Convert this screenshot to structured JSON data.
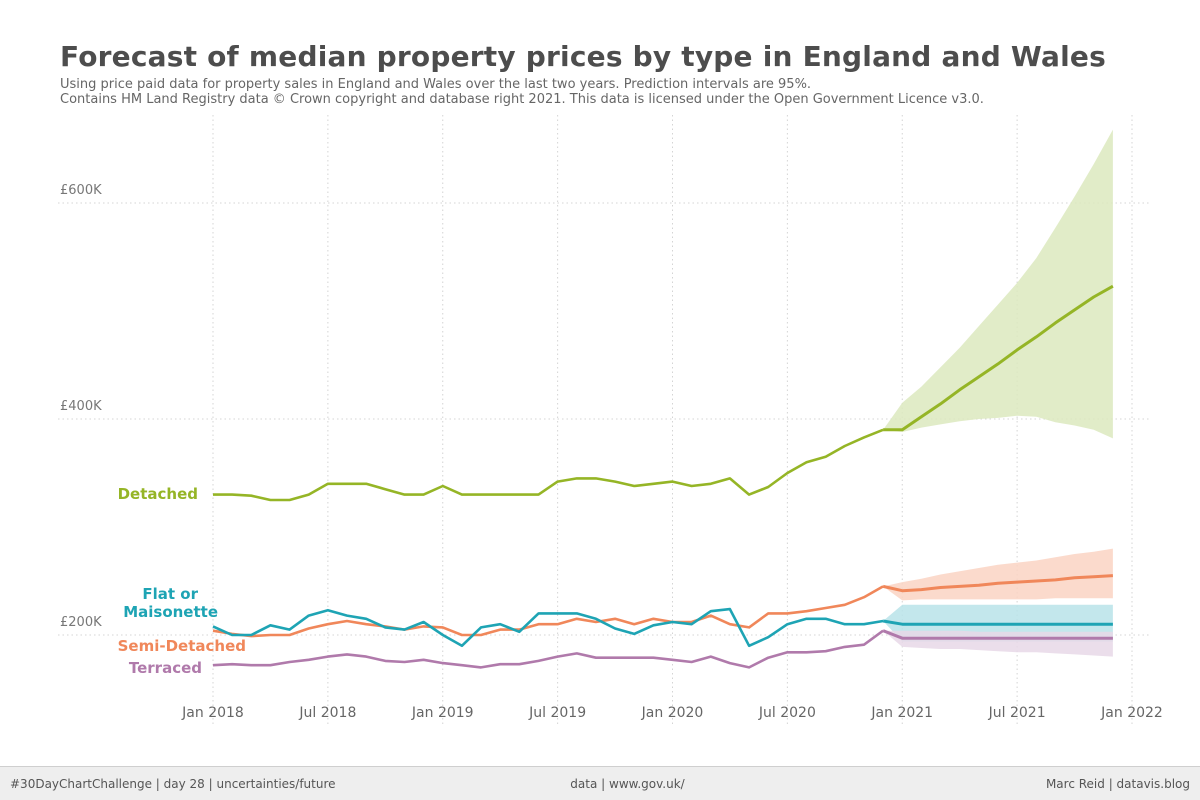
{
  "header": {
    "title": "Forecast of median property prices by type in England and Wales",
    "subtitle_line1": "Using price paid data for property sales in England and Wales over the last two years. Prediction intervals are 95%.",
    "subtitle_line2": "Contains HM Land Registry data © Crown copyright and database right 2021. This data is licensed under the Open Government Licence v3.0."
  },
  "footer": {
    "left": "#30DayChartChallenge | day 28 | uncertainties/future",
    "center": "data | www.gov.uk/",
    "right": "Marc Reid | datavis.blog"
  },
  "chart_data": {
    "type": "line",
    "x_start": "2018-01",
    "x_end": "2022-01",
    "x_ticks": [
      "Jan 2018",
      "Jul 2018",
      "Jan 2019",
      "Jul 2019",
      "Jan 2020",
      "Jul 2020",
      "Jan 2021",
      "Jul 2021",
      "Jan 2022"
    ],
    "y_ticks": [
      {
        "value": 200000,
        "label": "£200K"
      },
      {
        "value": 400000,
        "label": "£400K"
      },
      {
        "value": 600000,
        "label": "£600K"
      }
    ],
    "ylim": [
      120000,
      680000
    ],
    "grid": true,
    "series": [
      {
        "name": "Detached",
        "color": "#95b526",
        "band_color": "#dce9be",
        "values": [
          330000,
          330000,
          329000,
          325000,
          325000,
          330000,
          340000,
          340000,
          340000,
          335000,
          330000,
          330000,
          338000,
          330000,
          330000,
          330000,
          330000,
          330000,
          342000,
          345000,
          345000,
          342000,
          338000,
          340000,
          342000,
          338000,
          340000,
          345000,
          330000,
          337000,
          350000,
          360000,
          365000,
          375000,
          383000,
          390000
        ],
        "forecast": [
          390000,
          402000,
          414000,
          427000,
          439000,
          451000,
          464000,
          476000,
          489000,
          501000,
          513000,
          523000
        ],
        "forecast_lower": [
          390000,
          388000,
          392000,
          395000,
          398000,
          400000,
          401000,
          403000,
          402000,
          397000,
          394000,
          390000,
          382000
        ],
        "forecast_upper": [
          390000,
          415000,
          430000,
          448000,
          466000,
          486000,
          506000,
          526000,
          549000,
          577000,
          606000,
          636000,
          668000
        ]
      },
      {
        "name": "Semi-Detached",
        "color": "#f0875a",
        "band_color": "#fad4c3",
        "values": [
          204000,
          201000,
          199000,
          200000,
          200000,
          206000,
          210000,
          213000,
          210000,
          208000,
          205000,
          208000,
          207000,
          200000,
          200000,
          205000,
          205000,
          210000,
          210000,
          215000,
          212000,
          215000,
          210000,
          215000,
          212000,
          212000,
          218000,
          210000,
          207000,
          220000,
          220000,
          222000,
          225000,
          228000,
          235000,
          245000
        ],
        "forecast": [
          241000,
          242000,
          244000,
          245000,
          246000,
          248000,
          249000,
          250000,
          251000,
          253000,
          254000,
          255000
        ],
        "forecast_lower": [
          245000,
          232000,
          233000,
          233000,
          233000,
          233000,
          233000,
          233000,
          233000,
          234000,
          234000,
          234000,
          234000
        ],
        "forecast_upper": [
          245000,
          249000,
          252000,
          256000,
          259000,
          262000,
          265000,
          267000,
          269000,
          272000,
          275000,
          277000,
          280000
        ]
      },
      {
        "name": "Flat or Maisonette",
        "color": "#1ea4b4",
        "band_color": "#b9e3e9",
        "values": [
          208000,
          200000,
          200000,
          209000,
          205000,
          218000,
          223000,
          218000,
          215000,
          207000,
          205000,
          212000,
          200000,
          190000,
          207000,
          210000,
          203000,
          220000,
          220000,
          220000,
          215000,
          206000,
          201000,
          209000,
          212000,
          210000,
          222000,
          224000,
          190000,
          198000,
          210000,
          215000,
          215000,
          210000,
          210000,
          213000
        ],
        "forecast": [
          210000,
          210000,
          210000,
          210000,
          210000,
          210000,
          210000,
          210000,
          210000,
          210000,
          210000,
          210000
        ],
        "forecast_lower": [
          213000,
          194000,
          194000,
          194000,
          194000,
          194000,
          194000,
          194000,
          194000,
          194000,
          194000,
          194000,
          194000
        ],
        "forecast_upper": [
          213000,
          228000,
          228000,
          228000,
          228000,
          228000,
          228000,
          228000,
          228000,
          228000,
          228000,
          228000,
          228000
        ]
      },
      {
        "name": "Terraced",
        "color": "#b07aab",
        "band_color": "#e8d8e7",
        "values": [
          172000,
          173000,
          172000,
          172000,
          175000,
          177000,
          180000,
          182000,
          180000,
          176000,
          175000,
          177000,
          174000,
          172000,
          170000,
          173000,
          173000,
          176000,
          180000,
          183000,
          179000,
          179000,
          179000,
          179000,
          177000,
          175000,
          180000,
          174000,
          170000,
          179000,
          184000,
          184000,
          185000,
          189000,
          191000,
          204000
        ],
        "forecast": [
          197000,
          197000,
          197000,
          197000,
          197000,
          197000,
          197000,
          197000,
          197000,
          197000,
          197000,
          197000
        ],
        "forecast_lower": [
          204000,
          189000,
          188000,
          187000,
          187000,
          186000,
          185000,
          184000,
          184000,
          183000,
          182000,
          181000,
          180000
        ],
        "forecast_upper": [
          204000,
          204000,
          204000,
          204000,
          204000,
          203000,
          203000,
          203000,
          203000,
          203000,
          203000,
          203000,
          203000
        ]
      }
    ]
  }
}
